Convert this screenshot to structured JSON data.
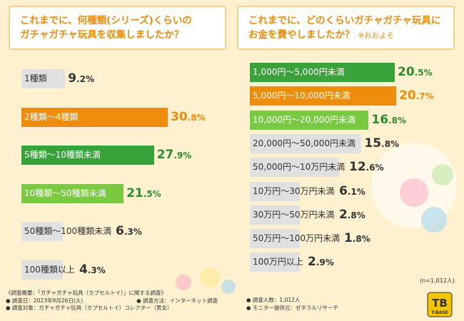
{
  "chart_data": [
    {
      "type": "bar",
      "title": "これまでに、何種類(シリーズ)くらいの\nガチャガチャ玩具を収集しましたか？",
      "categories": [
        "1種類",
        "2種類〜4種類",
        "5種類〜10種類未満",
        "10種類〜50種類未満",
        "50種類〜100種類未満",
        "100種類以上"
      ],
      "values": [
        9.2,
        30.8,
        27.9,
        21.5,
        6.3,
        4.3
      ],
      "unit": "%"
    },
    {
      "type": "bar",
      "title": "これまでに、どのくらいガチャガチャ玩具に\nお金を費やしましたか？",
      "title_note": "※おおよそ",
      "categories": [
        "1,000円〜5,000円未満",
        "5,000円〜10,000円未満",
        "10,000円〜20,000円未満",
        "20,000円〜50,000円未満",
        "50,000円〜10万円未満",
        "10万円〜30万円未満",
        "30万円〜50万円未満",
        "50万円〜100万円未満",
        "100万円以上"
      ],
      "values": [
        20.5,
        20.7,
        16.8,
        15.8,
        12.6,
        6.1,
        2.8,
        1.8,
        2.9
      ],
      "unit": "%",
      "sample_note": "(n=1,012人)"
    }
  ],
  "colors": {
    "rank1": "#ee8c0b",
    "rank2": "#3aa23a",
    "rank3": "#7ac943",
    "other": "#e0e0e0",
    "title": "#e98c10"
  },
  "footer": {
    "lines": [
      "《調査概要：「ガチャガチャ玩具（カプセルトイ）」に関する調査》",
      "● 調査日：2023年9月26日(火)　　　　　　　　　　● 調査方法：インターネット調査",
      "● 調査対象：ガチャガチャ玩具（カプセルトイ）コレクター（男女）"
    ],
    "right_lines": [
      "● 調査人数：1,012人",
      "● モニター提供元：ゼネラルリサーチ"
    ]
  },
  "logo": {
    "text": "T-BASE",
    "icon": "tb-logo-icon"
  }
}
